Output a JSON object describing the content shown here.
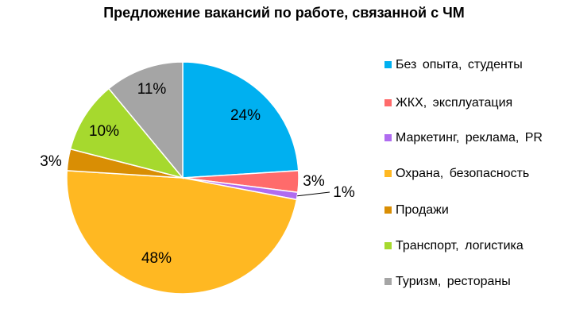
{
  "chart_data": {
    "type": "pie",
    "title": "Предложение вакансий по работе, связанной с ЧМ",
    "legend_position": "right",
    "slices": [
      {
        "name": "Без опыта, студенты",
        "value": 24,
        "label": "24%",
        "color": "#00B0F0"
      },
      {
        "name": "ЖКХ, эксплуатация",
        "value": 3,
        "label": "3%",
        "color": "#FF6B6B"
      },
      {
        "name": "Маркетинг, реклама, PR",
        "value": 1,
        "label": "1%",
        "color": "#B06CF0"
      },
      {
        "name": "Охрана, безопасность",
        "value": 48,
        "label": "48%",
        "color": "#FFB822"
      },
      {
        "name": "Продажи",
        "value": 3,
        "label": "3%",
        "color": "#D98E04"
      },
      {
        "name": "Транспорт, логистика",
        "value": 10,
        "label": "10%",
        "color": "#A6D92E"
      },
      {
        "name": "Туризм, рестораны",
        "value": 11,
        "label": "11%",
        "color": "#A5A5A5"
      }
    ]
  }
}
